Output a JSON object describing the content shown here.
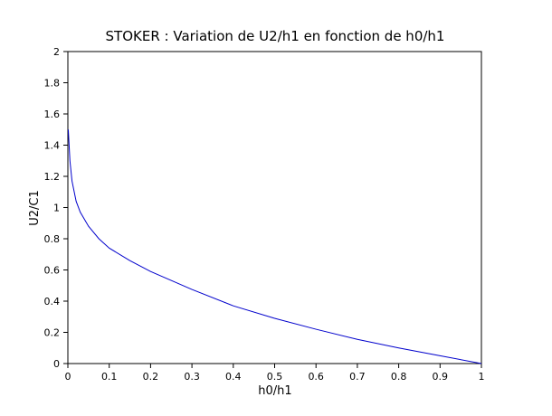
{
  "chart_data": {
    "type": "line",
    "title": "STOKER : Variation de U2/h1 en fonction de h0/h1",
    "x_label": "h0/h1",
    "y_label": "U2/C1",
    "x": [
      0.001,
      0.005,
      0.01,
      0.02,
      0.03,
      0.05,
      0.075,
      0.1,
      0.15,
      0.2,
      0.3,
      0.4,
      0.5,
      0.6,
      0.7,
      0.8,
      0.9,
      1
    ],
    "values": [
      1.5,
      1.3,
      1.17,
      1.04,
      0.97,
      0.88,
      0.8,
      0.74,
      0.66,
      0.59,
      0.475,
      0.37,
      0.29,
      0.22,
      0.155,
      0.1,
      0.05,
      0
    ],
    "color": "#0000cc",
    "xlim": [
      0,
      1
    ],
    "ylim": [
      0,
      2
    ],
    "xticks": [
      0,
      0.1,
      0.2,
      0.3,
      0.4,
      0.5,
      0.6,
      0.7,
      0.8,
      0.9,
      1
    ],
    "yticks": [
      0,
      0.2,
      0.4,
      0.6,
      0.8,
      1,
      1.2,
      1.4,
      1.6,
      1.8,
      2
    ]
  }
}
